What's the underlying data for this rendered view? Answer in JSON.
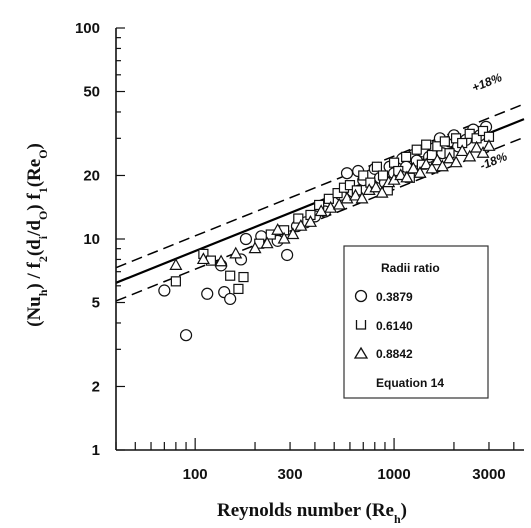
{
  "chart_data": {
    "type": "scatter",
    "title": "",
    "xlabel": "Reynolds number (Re",
    "xlabel_sub": "h",
    "xlabel_end": ")",
    "ylabel": "(Nu",
    "ylabel_sub1": "h",
    "ylabel_mid1": ") / f",
    "ylabel_sub2": "2",
    "ylabel_mid2": "(d",
    "ylabel_sub3": "i",
    "ylabel_mid3": "/d",
    "ylabel_sub4": "O",
    "ylabel_mid4": ") f",
    "ylabel_sub5": "1",
    "ylabel_mid5": "(Re",
    "ylabel_sub6": "O",
    "ylabel_end": ")",
    "x_scale": "log",
    "y_scale": "log",
    "xlim": [
      40,
      4500
    ],
    "ylim": [
      1,
      100
    ],
    "x_ticks": [
      "100",
      "300",
      "1000",
      "3000"
    ],
    "y_ticks": [
      "1",
      "2",
      "5",
      "10",
      "20",
      "50",
      "100"
    ],
    "band_labels": {
      "upper": "+18%",
      "lower": "-18%"
    },
    "legend": {
      "title": "Radii ratio",
      "entries": [
        {
          "label": "0.3879",
          "marker": "circle"
        },
        {
          "label": "0.6140",
          "marker": "square"
        },
        {
          "label": "0.8842",
          "marker": "triangle"
        },
        {
          "label": "Equation 14",
          "marker": "line"
        }
      ],
      "position": "lower-right"
    },
    "fit_line": {
      "x": [
        40,
        4500
      ],
      "y": [
        6.2,
        37
      ]
    },
    "band": {
      "upper_factor": 1.18,
      "lower_factor": 0.82
    },
    "series": [
      {
        "name": "0.3879",
        "marker": "circle",
        "points": [
          [
            70,
            5.7
          ],
          [
            90,
            3.5
          ],
          [
            115,
            5.5
          ],
          [
            140,
            5.6
          ],
          [
            150,
            5.2
          ],
          [
            135,
            7.5
          ],
          [
            170,
            8.0
          ],
          [
            180,
            10.0
          ],
          [
            215,
            10.3
          ],
          [
            260,
            9.8
          ],
          [
            290,
            8.4
          ],
          [
            325,
            11.5
          ],
          [
            360,
            12.0
          ],
          [
            400,
            12.8
          ],
          [
            450,
            13.5
          ],
          [
            500,
            15.0
          ],
          [
            540,
            16.2
          ],
          [
            580,
            20.5
          ],
          [
            620,
            16.8
          ],
          [
            660,
            21.0
          ],
          [
            700,
            19.0
          ],
          [
            760,
            20.0
          ],
          [
            800,
            21.5
          ],
          [
            850,
            19.5
          ],
          [
            900,
            18.5
          ],
          [
            950,
            22.0
          ],
          [
            1000,
            20.5
          ],
          [
            1100,
            24.0
          ],
          [
            1150,
            22.0
          ],
          [
            1250,
            25.0
          ],
          [
            1300,
            23.5
          ],
          [
            1400,
            26.0
          ],
          [
            1500,
            24.5
          ],
          [
            1600,
            27.0
          ],
          [
            1700,
            30.0
          ],
          [
            1750,
            25.5
          ],
          [
            1900,
            29.0
          ],
          [
            2000,
            31.0
          ],
          [
            2100,
            27.5
          ],
          [
            2300,
            29.5
          ],
          [
            2500,
            33.0
          ],
          [
            2700,
            31.0
          ],
          [
            2900,
            34.0
          ]
        ]
      },
      {
        "name": "0.6140",
        "marker": "square",
        "points": [
          [
            80,
            6.3
          ],
          [
            110,
            8.5
          ],
          [
            120,
            7.9
          ],
          [
            150,
            6.7
          ],
          [
            165,
            5.8
          ],
          [
            175,
            6.6
          ],
          [
            210,
            9.5
          ],
          [
            240,
            10.5
          ],
          [
            280,
            11.0
          ],
          [
            330,
            12.5
          ],
          [
            380,
            13.0
          ],
          [
            420,
            14.5
          ],
          [
            470,
            15.5
          ],
          [
            520,
            16.5
          ],
          [
            560,
            17.5
          ],
          [
            600,
            18.0
          ],
          [
            650,
            17.0
          ],
          [
            700,
            20.0
          ],
          [
            760,
            18.5
          ],
          [
            820,
            22.0
          ],
          [
            880,
            20.0
          ],
          [
            930,
            17.0
          ],
          [
            1000,
            23.0
          ],
          [
            1050,
            21.0
          ],
          [
            1150,
            24.5
          ],
          [
            1200,
            19.5
          ],
          [
            1300,
            26.5
          ],
          [
            1380,
            22.5
          ],
          [
            1450,
            28.0
          ],
          [
            1550,
            25.0
          ],
          [
            1650,
            27.5
          ],
          [
            1800,
            29.0
          ],
          [
            1900,
            25.5
          ],
          [
            2050,
            30.0
          ],
          [
            2200,
            28.5
          ],
          [
            2400,
            31.5
          ],
          [
            2600,
            30.0
          ],
          [
            2800,
            32.5
          ],
          [
            3000,
            30.5
          ]
        ]
      },
      {
        "name": "0.8842",
        "marker": "triangle",
        "points": [
          [
            80,
            7.5
          ],
          [
            110,
            8.0
          ],
          [
            135,
            7.8
          ],
          [
            160,
            8.5
          ],
          [
            200,
            9.0
          ],
          [
            230,
            9.5
          ],
          [
            260,
            11.0
          ],
          [
            280,
            10.0
          ],
          [
            310,
            10.5
          ],
          [
            340,
            11.5
          ],
          [
            380,
            12.0
          ],
          [
            430,
            13.5
          ],
          [
            480,
            14.0
          ],
          [
            530,
            14.5
          ],
          [
            580,
            15.5
          ],
          [
            640,
            16.0
          ],
          [
            690,
            15.5
          ],
          [
            750,
            17.0
          ],
          [
            810,
            17.5
          ],
          [
            870,
            16.5
          ],
          [
            940,
            18.5
          ],
          [
            1000,
            19.0
          ],
          [
            1080,
            20.0
          ],
          [
            1160,
            19.5
          ],
          [
            1250,
            21.5
          ],
          [
            1350,
            20.5
          ],
          [
            1450,
            22.5
          ],
          [
            1550,
            21.5
          ],
          [
            1650,
            23.5
          ],
          [
            1750,
            22.0
          ],
          [
            1900,
            24.0
          ],
          [
            2050,
            23.0
          ],
          [
            2200,
            26.0
          ],
          [
            2400,
            24.5
          ],
          [
            2600,
            27.0
          ],
          [
            2800,
            25.5
          ],
          [
            3000,
            27.5
          ]
        ]
      }
    ]
  }
}
